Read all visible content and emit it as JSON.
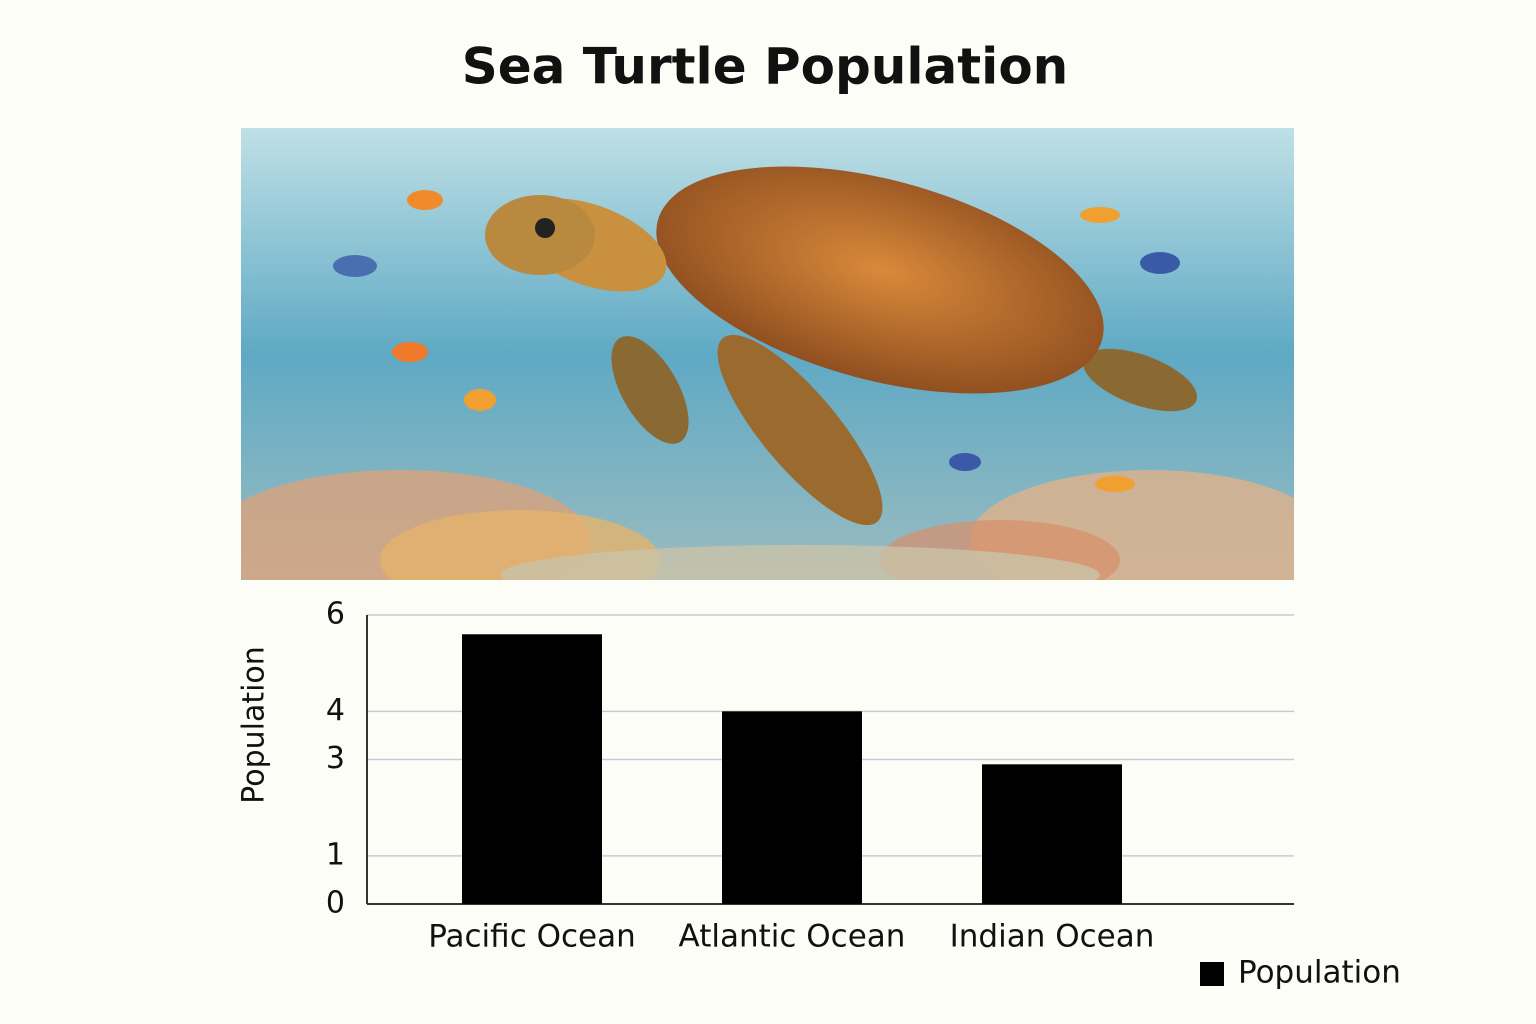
{
  "chart_data": {
    "type": "bar",
    "title": "Sea Turtle Population",
    "categories": [
      "Pacific Ocean",
      "Atlantic Ocean",
      "Indian Ocean"
    ],
    "series": [
      {
        "name": "Population",
        "color": "#000000",
        "values": [
          5.6,
          4.0,
          2.9
        ]
      }
    ],
    "y_label": "Population",
    "ylim": [
      0,
      6
    ],
    "yticks": [
      0,
      1,
      3,
      4,
      6
    ],
    "grid": true,
    "legend": "bottom-right"
  }
}
